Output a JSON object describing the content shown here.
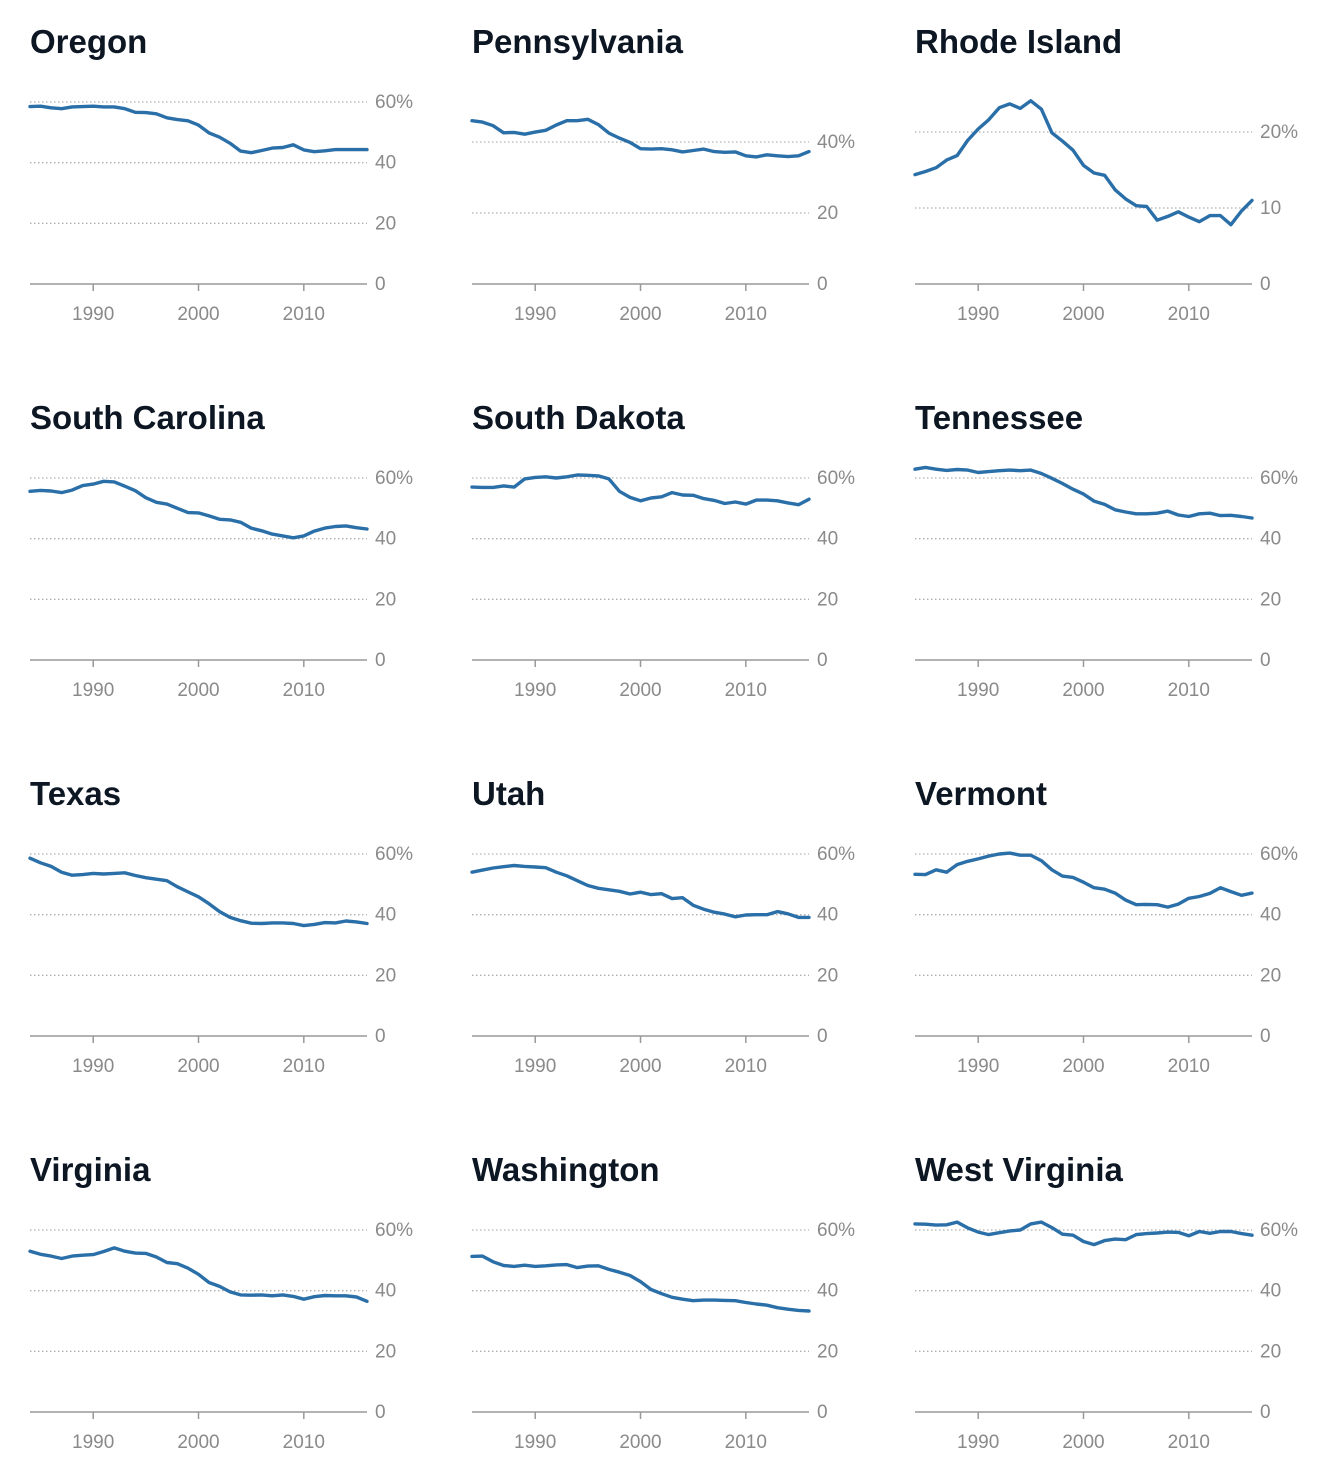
{
  "colors": {
    "line": "#2a6fa8",
    "title": "#0d1623",
    "tick": "#8a8a8a",
    "grid": "#b0b0b0",
    "axis": "#999999"
  },
  "x_ticks": [
    "1990",
    "2000",
    "2010"
  ],
  "chart_data": [
    {
      "type": "line",
      "title": "Oregon",
      "x": [
        1984,
        1985,
        1986,
        1987,
        1988,
        1989,
        1990,
        1991,
        1992,
        1993,
        1994,
        1995,
        1996,
        1997,
        1998,
        1999,
        2000,
        2001,
        2002,
        2003,
        2004,
        2005,
        2006,
        2007,
        2008,
        2009,
        2010,
        2011,
        2012,
        2013,
        2014,
        2015,
        2016
      ],
      "values": [
        58.5,
        58.6,
        58.1,
        57.8,
        58.4,
        58.5,
        58.6,
        58.4,
        58.4,
        57.8,
        56.6,
        56.5,
        56.1,
        54.8,
        54.2,
        53.8,
        52.4,
        49.8,
        48.4,
        46.4,
        43.8,
        43.3,
        44.0,
        44.8,
        45.0,
        45.9,
        44.2,
        43.6,
        43.9,
        44.3,
        44.3,
        44.3,
        44.3
      ],
      "yticks": [
        0,
        20,
        40,
        60
      ],
      "ytick_labels": [
        "0",
        "20",
        "40",
        "60%"
      ],
      "ylim": [
        0,
        60
      ]
    },
    {
      "type": "line",
      "title": "Pennsylvania",
      "x": [
        1984,
        1985,
        1986,
        1987,
        1988,
        1989,
        1990,
        1991,
        1992,
        1993,
        1994,
        1995,
        1996,
        1997,
        1998,
        1999,
        2000,
        2001,
        2002,
        2003,
        2004,
        2005,
        2006,
        2007,
        2008,
        2009,
        2010,
        2011,
        2012,
        2013,
        2014,
        2015,
        2016
      ],
      "values": [
        46.0,
        45.6,
        44.6,
        42.6,
        42.7,
        42.2,
        42.8,
        43.3,
        44.8,
        46.0,
        46.0,
        46.4,
        44.9,
        42.5,
        41.1,
        39.9,
        38.1,
        38.0,
        38.1,
        37.8,
        37.2,
        37.6,
        38.0,
        37.3,
        37.1,
        37.2,
        36.1,
        35.8,
        36.4,
        36.1,
        35.9,
        36.1,
        37.3
      ],
      "yticks": [
        0,
        20,
        40
      ],
      "ytick_labels": [
        "0",
        "20",
        "40%"
      ],
      "ylim": [
        0,
        40
      ]
    },
    {
      "type": "line",
      "title": "Rhode Island",
      "x": [
        1984,
        1985,
        1986,
        1987,
        1988,
        1989,
        1990,
        1991,
        1992,
        1993,
        1994,
        1995,
        1996,
        1997,
        1998,
        1999,
        2000,
        2001,
        2002,
        2003,
        2004,
        2005,
        2006,
        2007,
        2008,
        2009,
        2010,
        2011,
        2012,
        2013,
        2014,
        2015,
        2016
      ],
      "values": [
        14.4,
        14.8,
        15.3,
        16.3,
        16.9,
        18.9,
        20.4,
        21.6,
        23.2,
        23.7,
        23.1,
        24.1,
        23.0,
        19.9,
        18.8,
        17.6,
        15.6,
        14.6,
        14.3,
        12.4,
        11.2,
        10.3,
        10.2,
        8.4,
        8.9,
        9.5,
        8.8,
        8.2,
        9.0,
        9.0,
        7.8,
        9.6,
        11.0
      ],
      "yticks": [
        0,
        10,
        20
      ],
      "ytick_labels": [
        "0",
        "10",
        "20%"
      ],
      "ylim": [
        0,
        20
      ]
    },
    {
      "type": "line",
      "title": "South Carolina",
      "x": [
        1984,
        1985,
        1986,
        1987,
        1988,
        1989,
        1990,
        1991,
        1992,
        1993,
        1994,
        1995,
        1996,
        1997,
        1998,
        1999,
        2000,
        2001,
        2002,
        2003,
        2004,
        2005,
        2006,
        2007,
        2008,
        2009,
        2010,
        2011,
        2012,
        2013,
        2014,
        2015,
        2016
      ],
      "values": [
        55.6,
        55.9,
        55.7,
        55.2,
        56.0,
        57.5,
        58.0,
        58.9,
        58.7,
        57.3,
        55.8,
        53.5,
        52.0,
        51.4,
        50.0,
        48.6,
        48.5,
        47.5,
        46.4,
        46.2,
        45.4,
        43.5,
        42.6,
        41.5,
        40.9,
        40.3,
        40.9,
        42.5,
        43.5,
        44.0,
        44.2,
        43.6,
        43.2
      ],
      "yticks": [
        0,
        20,
        40,
        60
      ],
      "ytick_labels": [
        "0",
        "20",
        "40",
        "60%"
      ],
      "ylim": [
        0,
        60
      ]
    },
    {
      "type": "line",
      "title": "South Dakota",
      "x": [
        1984,
        1985,
        1986,
        1987,
        1988,
        1989,
        1990,
        1991,
        1992,
        1993,
        1994,
        1995,
        1996,
        1997,
        1998,
        1999,
        2000,
        2001,
        2002,
        2003,
        2004,
        2005,
        2006,
        2007,
        2008,
        2009,
        2010,
        2011,
        2012,
        2013,
        2014,
        2015,
        2016
      ],
      "values": [
        57.0,
        56.9,
        56.9,
        57.4,
        57.0,
        59.7,
        60.2,
        60.4,
        60.0,
        60.4,
        61.0,
        60.9,
        60.7,
        59.7,
        55.6,
        53.6,
        52.5,
        53.4,
        53.8,
        55.2,
        54.4,
        54.3,
        53.2,
        52.6,
        51.6,
        52.1,
        51.4,
        52.7,
        52.7,
        52.5,
        51.8,
        51.2,
        53.0
      ],
      "yticks": [
        0,
        20,
        40,
        60
      ],
      "ytick_labels": [
        "0",
        "20",
        "40",
        "60%"
      ],
      "ylim": [
        0,
        60
      ]
    },
    {
      "type": "line",
      "title": "Tennessee",
      "x": [
        1984,
        1985,
        1986,
        1987,
        1988,
        1989,
        1990,
        1991,
        1992,
        1993,
        1994,
        1995,
        1996,
        1997,
        1998,
        1999,
        2000,
        2001,
        2002,
        2003,
        2004,
        2005,
        2006,
        2007,
        2008,
        2009,
        2010,
        2011,
        2012,
        2013,
        2014,
        2015,
        2016
      ],
      "values": [
        62.9,
        63.5,
        62.9,
        62.5,
        62.8,
        62.6,
        61.8,
        62.1,
        62.4,
        62.6,
        62.4,
        62.6,
        61.5,
        59.9,
        58.2,
        56.3,
        54.7,
        52.4,
        51.3,
        49.5,
        48.8,
        48.2,
        48.2,
        48.4,
        49.1,
        47.8,
        47.3,
        48.2,
        48.4,
        47.6,
        47.7,
        47.3,
        46.8
      ],
      "yticks": [
        0,
        20,
        40,
        60
      ],
      "ytick_labels": [
        "0",
        "20",
        "40",
        "60%"
      ],
      "ylim": [
        0,
        60
      ]
    },
    {
      "type": "line",
      "title": "Texas",
      "x": [
        1984,
        1985,
        1986,
        1987,
        1988,
        1989,
        1990,
        1991,
        1992,
        1993,
        1994,
        1995,
        1996,
        1997,
        1998,
        1999,
        2000,
        2001,
        2002,
        2003,
        2004,
        2005,
        2006,
        2007,
        2008,
        2009,
        2010,
        2011,
        2012,
        2013,
        2014,
        2015,
        2016
      ],
      "values": [
        58.6,
        57.1,
        55.9,
        54.0,
        53.0,
        53.2,
        53.6,
        53.4,
        53.6,
        53.8,
        52.9,
        52.2,
        51.7,
        51.2,
        49.2,
        47.5,
        45.9,
        43.6,
        41.0,
        39.1,
        38.0,
        37.2,
        37.1,
        37.3,
        37.3,
        37.1,
        36.4,
        36.8,
        37.4,
        37.3,
        37.9,
        37.6,
        37.1
      ],
      "yticks": [
        0,
        20,
        40,
        60
      ],
      "ytick_labels": [
        "0",
        "20",
        "40",
        "60%"
      ],
      "ylim": [
        0,
        60
      ]
    },
    {
      "type": "line",
      "title": "Utah",
      "x": [
        1984,
        1985,
        1986,
        1987,
        1988,
        1989,
        1990,
        1991,
        1992,
        1993,
        1994,
        1995,
        1996,
        1997,
        1998,
        1999,
        2000,
        2001,
        2002,
        2003,
        2004,
        2005,
        2006,
        2007,
        2008,
        2009,
        2010,
        2011,
        2012,
        2013,
        2014,
        2015,
        2016
      ],
      "values": [
        54.0,
        54.7,
        55.4,
        55.8,
        56.2,
        55.9,
        55.7,
        55.5,
        54.0,
        52.8,
        51.2,
        49.6,
        48.7,
        48.2,
        47.7,
        46.8,
        47.4,
        46.6,
        46.9,
        45.3,
        45.6,
        43.1,
        41.8,
        40.8,
        40.2,
        39.3,
        39.9,
        40.0,
        40.0,
        41.0,
        40.3,
        39.1,
        39.1
      ],
      "yticks": [
        0,
        20,
        40,
        60
      ],
      "ytick_labels": [
        "0",
        "20",
        "40",
        "60%"
      ],
      "ylim": [
        0,
        60
      ]
    },
    {
      "type": "line",
      "title": "Vermont",
      "x": [
        1984,
        1985,
        1986,
        1987,
        1988,
        1989,
        1990,
        1991,
        1992,
        1993,
        1994,
        1995,
        1996,
        1997,
        1998,
        1999,
        2000,
        2001,
        2002,
        2003,
        2004,
        2005,
        2006,
        2007,
        2008,
        2009,
        2010,
        2011,
        2012,
        2013,
        2014,
        2015,
        2016
      ],
      "values": [
        53.3,
        53.2,
        54.8,
        54.0,
        56.5,
        57.6,
        58.4,
        59.3,
        60.0,
        60.3,
        59.6,
        59.6,
        57.8,
        54.8,
        52.7,
        52.3,
        50.7,
        48.9,
        48.4,
        47.1,
        44.8,
        43.3,
        43.4,
        43.3,
        42.5,
        43.5,
        45.4,
        46.0,
        47.0,
        48.9,
        47.6,
        46.4,
        47.1
      ],
      "yticks": [
        0,
        20,
        40,
        60
      ],
      "ytick_labels": [
        "0",
        "20",
        "40",
        "60%"
      ],
      "ylim": [
        0,
        60
      ]
    },
    {
      "type": "line",
      "title": "Virginia",
      "x": [
        1984,
        1985,
        1986,
        1987,
        1988,
        1989,
        1990,
        1991,
        1992,
        1993,
        1994,
        1995,
        1996,
        1997,
        1998,
        1999,
        2000,
        2001,
        2002,
        2003,
        2004,
        2005,
        2006,
        2007,
        2008,
        2009,
        2010,
        2011,
        2012,
        2013,
        2014,
        2015,
        2016
      ],
      "values": [
        53.0,
        52.0,
        51.4,
        50.6,
        51.4,
        51.7,
        51.9,
        52.9,
        54.1,
        53.0,
        52.4,
        52.3,
        51.1,
        49.3,
        48.9,
        47.4,
        45.4,
        42.7,
        41.4,
        39.6,
        38.6,
        38.5,
        38.6,
        38.3,
        38.6,
        38.1,
        37.2,
        38.0,
        38.4,
        38.3,
        38.3,
        37.9,
        36.5
      ],
      "yticks": [
        0,
        20,
        40,
        60
      ],
      "ytick_labels": [
        "0",
        "20",
        "40",
        "60%"
      ],
      "ylim": [
        0,
        60
      ]
    },
    {
      "type": "line",
      "title": "Washington",
      "x": [
        1984,
        1985,
        1986,
        1987,
        1988,
        1989,
        1990,
        1991,
        1992,
        1993,
        1994,
        1995,
        1996,
        1997,
        1998,
        1999,
        2000,
        2001,
        2002,
        2003,
        2004,
        2005,
        2006,
        2007,
        2008,
        2009,
        2010,
        2011,
        2012,
        2013,
        2014,
        2015,
        2016
      ],
      "values": [
        51.3,
        51.4,
        49.5,
        48.3,
        48.0,
        48.4,
        48.0,
        48.2,
        48.5,
        48.6,
        47.6,
        48.1,
        48.2,
        47.0,
        46.1,
        45.0,
        43.0,
        40.4,
        39.0,
        37.8,
        37.2,
        36.7,
        36.9,
        36.9,
        36.8,
        36.7,
        36.1,
        35.6,
        35.2,
        34.4,
        33.9,
        33.5,
        33.3
      ],
      "yticks": [
        0,
        20,
        40,
        60
      ],
      "ytick_labels": [
        "0",
        "20",
        "40",
        "60%"
      ],
      "ylim": [
        0,
        60
      ]
    },
    {
      "type": "line",
      "title": "West Virginia",
      "x": [
        1984,
        1985,
        1986,
        1987,
        1988,
        1989,
        1990,
        1991,
        1992,
        1993,
        1994,
        1995,
        1996,
        1997,
        1998,
        1999,
        2000,
        2001,
        2002,
        2003,
        2004,
        2005,
        2006,
        2007,
        2008,
        2009,
        2010,
        2011,
        2012,
        2013,
        2014,
        2015,
        2016
      ],
      "values": [
        62.0,
        61.9,
        61.6,
        61.7,
        62.6,
        60.7,
        59.3,
        58.5,
        59.1,
        59.7,
        60.0,
        62.0,
        62.6,
        60.8,
        58.6,
        58.3,
        56.2,
        55.2,
        56.5,
        57.0,
        56.8,
        58.5,
        58.8,
        59.0,
        59.3,
        59.2,
        58.1,
        59.5,
        58.9,
        59.5,
        59.5,
        58.8,
        58.3
      ],
      "yticks": [
        0,
        20,
        40,
        60
      ],
      "ytick_labels": [
        "0",
        "20",
        "40",
        "60%"
      ],
      "ylim": [
        0,
        60
      ]
    }
  ]
}
